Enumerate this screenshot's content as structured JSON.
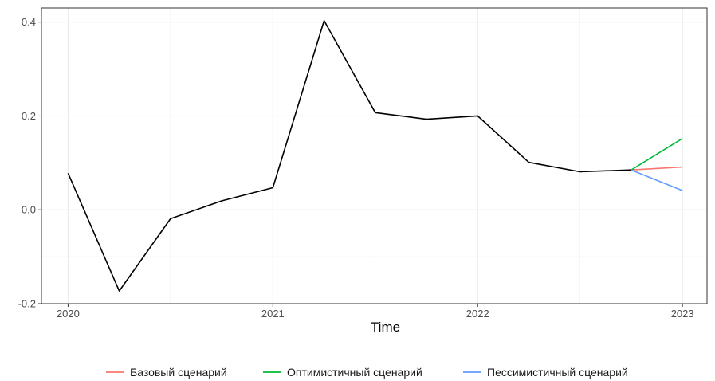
{
  "chart_data": {
    "type": "line",
    "title": "",
    "xlabel": "Time",
    "ylabel": "",
    "xlim": [
      2019.87,
      2023.12
    ],
    "ylim": [
      -0.2,
      0.43
    ],
    "x_ticks": [
      {
        "value": 2020,
        "label": "2020"
      },
      {
        "value": 2021,
        "label": "2021"
      },
      {
        "value": 2022,
        "label": "2022"
      },
      {
        "value": 2023,
        "label": "2023"
      }
    ],
    "y_ticks": [
      {
        "value": -0.2,
        "label": "-0.2"
      },
      {
        "value": 0.0,
        "label": "0.0"
      },
      {
        "value": 0.2,
        "label": "0.2"
      },
      {
        "value": 0.4,
        "label": "0.4"
      }
    ],
    "grid": true,
    "legend_position": "bottom",
    "history": {
      "color": "#000000",
      "x": [
        2020.0,
        2020.25,
        2020.5,
        2020.75,
        2021.0,
        2021.25,
        2021.5,
        2021.75,
        2022.0,
        2022.25,
        2022.5,
        2022.75
      ],
      "y": [
        0.078,
        -0.173,
        -0.019,
        0.019,
        0.047,
        0.403,
        0.207,
        0.193,
        0.2,
        0.101,
        0.081,
        0.085
      ]
    },
    "series": [
      {
        "name": "Базовый сценарий",
        "color": "#F8766D",
        "x": [
          2022.75,
          2023.0
        ],
        "y": [
          0.085,
          0.091
        ]
      },
      {
        "name": "Оптимистичный сценарий",
        "color": "#00BA38",
        "x": [
          2022.75,
          2023.0
        ],
        "y": [
          0.085,
          0.152
        ]
      },
      {
        "name": "Пессимистичный сценарий",
        "color": "#619CFF",
        "x": [
          2022.75,
          2023.0
        ],
        "y": [
          0.085,
          0.041
        ]
      }
    ]
  }
}
